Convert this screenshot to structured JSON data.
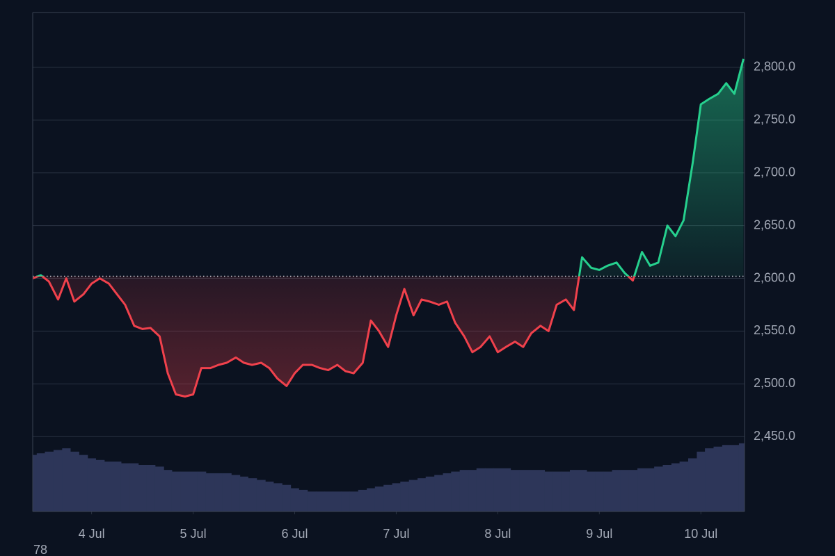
{
  "chart_data": {
    "type": "baseline-line",
    "x": [
      3.42,
      3.5,
      3.58,
      3.67,
      3.75,
      3.83,
      3.92,
      4,
      4.08,
      4.17,
      4.25,
      4.33,
      4.42,
      4.5,
      4.58,
      4.67,
      4.75,
      4.83,
      4.92,
      5,
      5.08,
      5.17,
      5.25,
      5.33,
      5.42,
      5.5,
      5.58,
      5.67,
      5.75,
      5.83,
      5.92,
      6,
      6.08,
      6.17,
      6.25,
      6.33,
      6.42,
      6.5,
      6.58,
      6.67,
      6.75,
      6.83,
      6.92,
      7,
      7.08,
      7.17,
      7.25,
      7.33,
      7.42,
      7.5,
      7.58,
      7.67,
      7.75,
      7.83,
      7.92,
      8,
      8.08,
      8.17,
      8.25,
      8.33,
      8.42,
      8.5,
      8.58,
      8.67,
      8.75,
      8.83,
      8.92,
      9,
      9.08,
      9.17,
      9.25,
      9.33,
      9.42,
      9.5,
      9.58,
      9.67,
      9.75,
      9.83,
      9.92,
      10,
      10.08,
      10.17,
      10.25,
      10.33,
      10.42
    ],
    "values": [
      2600,
      2603,
      2597,
      2580,
      2600,
      2578,
      2585,
      2595,
      2600,
      2595,
      2585,
      2575,
      2555,
      2552,
      2553,
      2545,
      2510,
      2490,
      2488,
      2490,
      2515,
      2515,
      2518,
      2520,
      2525,
      2520,
      2518,
      2520,
      2515,
      2505,
      2498,
      2510,
      2518,
      2518,
      2515,
      2513,
      2518,
      2512,
      2510,
      2520,
      2560,
      2550,
      2535,
      2565,
      2590,
      2565,
      2580,
      2578,
      2575,
      2578,
      2558,
      2545,
      2530,
      2535,
      2545,
      2530,
      2535,
      2540,
      2535,
      2548,
      2555,
      2550,
      2575,
      2580,
      2570,
      2620,
      2610,
      2608,
      2612,
      2615,
      2605,
      2598,
      2625,
      2612,
      2615,
      2650,
      2640,
      2655,
      2710,
      2765,
      2770,
      2775,
      2785,
      2775,
      2808
    ],
    "volume": [
      34,
      35,
      36,
      37,
      38,
      36,
      34,
      32,
      31,
      30,
      30,
      29,
      29,
      28,
      28,
      27,
      25,
      24,
      24,
      24,
      24,
      23,
      23,
      23,
      22,
      21,
      20,
      19,
      18,
      17,
      16,
      14,
      13,
      12,
      12,
      12,
      12,
      12,
      12,
      13,
      14,
      15,
      16,
      17,
      18,
      19,
      20,
      21,
      22,
      23,
      24,
      25,
      25,
      26,
      26,
      26,
      26,
      25,
      25,
      25,
      25,
      24,
      24,
      24,
      25,
      25,
      24,
      24,
      24,
      25,
      25,
      25,
      26,
      26,
      27,
      28,
      29,
      30,
      32,
      36,
      38,
      39,
      40,
      40,
      41
    ],
    "baseline": 2602,
    "up_color": "#26d08e",
    "down_color": "#f0414c",
    "volume_color": "#2d3659",
    "xlim": [
      3.42,
      10.43
    ],
    "ylim": [
      2379,
      2852
    ],
    "y2lim": [
      0,
      300
    ],
    "xticks": [
      {
        "value": 4,
        "label": "4 Jul"
      },
      {
        "value": 5,
        "label": "5 Jul"
      },
      {
        "value": 6,
        "label": "6 Jul"
      },
      {
        "value": 7,
        "label": "7 Jul"
      },
      {
        "value": 8,
        "label": "8 Jul"
      },
      {
        "value": 9,
        "label": "9 Jul"
      },
      {
        "value": 10,
        "label": "10 Jul"
      }
    ],
    "yticks": [
      {
        "value": 2450,
        "label": "2,450.0"
      },
      {
        "value": 2500,
        "label": "2,500.0"
      },
      {
        "value": 2550,
        "label": "2,550.0"
      },
      {
        "value": 2600,
        "label": "2,600.0"
      },
      {
        "value": 2650,
        "label": "2,650.0"
      },
      {
        "value": 2700,
        "label": "2,700.0"
      },
      {
        "value": 2750,
        "label": "2,750.0"
      },
      {
        "value": 2800,
        "label": "2,800.0"
      }
    ],
    "grid": true,
    "annotation": "78"
  }
}
